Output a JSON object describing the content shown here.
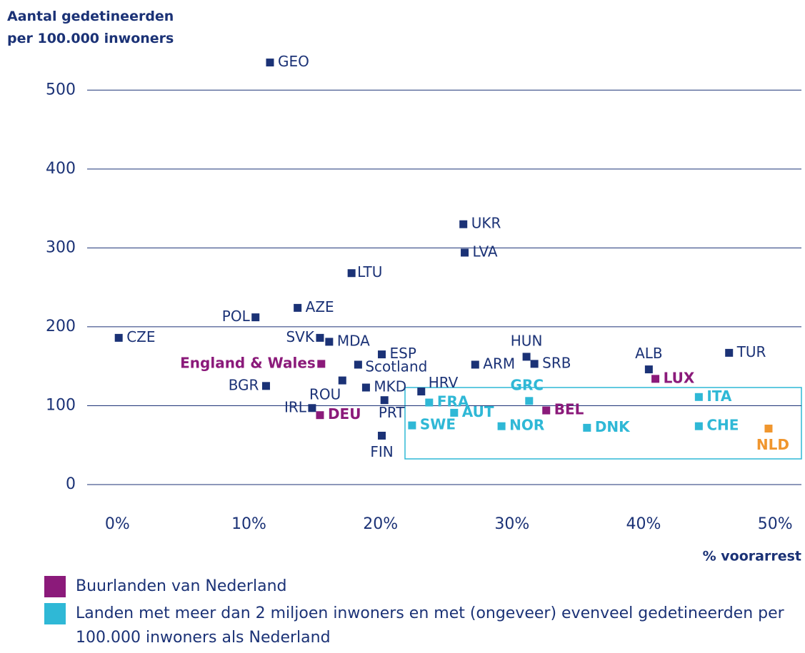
{
  "chart_data": {
    "type": "scatter",
    "y_label": "Aantal gedetineerden per 100.000 inwoners",
    "x_label": "% voorarrest",
    "xlim": [
      -2.3,
      52.0
    ],
    "ylim": [
      0,
      550
    ],
    "xticks": [
      {
        "value": 0,
        "label": "0%"
      },
      {
        "value": 10,
        "label": "10%"
      },
      {
        "value": 20,
        "label": "20%"
      },
      {
        "value": 30,
        "label": "30%"
      },
      {
        "value": 40,
        "label": "40%"
      },
      {
        "value": 50,
        "label": "50%"
      }
    ],
    "yticks": [
      0,
      100,
      200,
      300,
      400,
      500
    ],
    "grid": true,
    "series": [
      {
        "color": "#1b3276",
        "labels": [
          "GEO",
          "UKR",
          "LVA",
          "LTU",
          "AZE",
          "POL",
          "CZE",
          "SVK",
          "MDA",
          "ESP",
          "HUN",
          "TUR",
          "Scotland",
          "ARM",
          "SRB",
          "ALB",
          "ROU",
          "BGR",
          "MKD",
          "HRV",
          "PRT",
          "IRL",
          "FIN"
        ],
        "x": [
          11.6,
          26.3,
          26.4,
          17.8,
          13.7,
          10.5,
          0.1,
          15.4,
          16.1,
          20.1,
          31.1,
          46.5,
          18.3,
          27.2,
          31.7,
          40.4,
          17.1,
          11.3,
          18.9,
          23.1,
          20.3,
          14.8,
          20.1
        ],
        "y": [
          535,
          330,
          294,
          268,
          224,
          212,
          186,
          186,
          181,
          165,
          162,
          167,
          152,
          152,
          153,
          146,
          132,
          125,
          123,
          118,
          107,
          97,
          62
        ]
      },
      {
        "name": "Buurlanden van Nederland",
        "color": "#8b1a7a",
        "labels": [
          "England & Wales",
          "LUX",
          "BEL",
          "DEU"
        ],
        "x": [
          15.5,
          40.9,
          32.6,
          15.4
        ],
        "y": [
          153,
          134,
          94,
          88
        ]
      },
      {
        "name": "Landen met meer dan 2 miljoen inwoners en met (ongeveer) evenveel gedetineerden per 100.000 inwoners als Nederland",
        "color": "#2fb8d6",
        "labels": [
          "GRC",
          "ITA",
          "FRA",
          "AUT",
          "SWE",
          "NOR",
          "DNK",
          "CHE"
        ],
        "x": [
          31.3,
          44.2,
          23.7,
          25.6,
          22.4,
          29.2,
          35.7,
          44.2
        ],
        "y": [
          106,
          111,
          104,
          91,
          75,
          74,
          72,
          74
        ]
      },
      {
        "color": "#f0962e",
        "labels": [
          "NLD"
        ],
        "x": [
          49.5
        ],
        "y": [
          71
        ]
      }
    ]
  }
}
